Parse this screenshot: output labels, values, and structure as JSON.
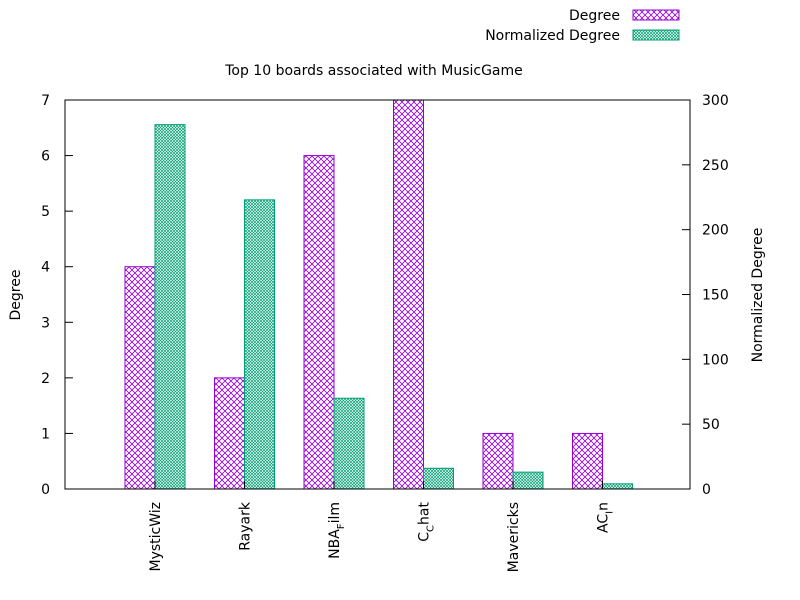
{
  "chart_data": {
    "type": "bar",
    "title": "Top 10 boards associated with MusicGame",
    "categories": [
      "MysticWiz",
      "Rayark",
      "NBA_Film",
      "C_Chat",
      "Mavericks",
      "AC_In"
    ],
    "category_labels": [
      {
        "base": "MysticWiz",
        "sub": "",
        "rest": ""
      },
      {
        "base": "Rayark",
        "sub": "",
        "rest": ""
      },
      {
        "base": "NBA",
        "sub": "F",
        "rest": "ilm"
      },
      {
        "base": "C",
        "sub": "C",
        "rest": "hat"
      },
      {
        "base": "Mavericks",
        "sub": "",
        "rest": ""
      },
      {
        "base": "AC",
        "sub": "I",
        "rest": "n"
      }
    ],
    "series": [
      {
        "name": "Degree",
        "axis": "left",
        "color": "#9400d3",
        "pattern": "crosshatch",
        "values": [
          4,
          2,
          6,
          7,
          1,
          1
        ]
      },
      {
        "name": "Normalized Degree",
        "axis": "right",
        "color": "#009e73",
        "pattern": "dense-crosshatch",
        "values": [
          281,
          223,
          70,
          16,
          13,
          4
        ]
      }
    ],
    "ylabel": "Degree",
    "y2label": "Normalized Degree",
    "ylim": [
      0,
      7
    ],
    "y2lim": [
      0,
      300
    ],
    "yticks": [
      "0",
      "1",
      "2",
      "3",
      "4",
      "5",
      "6",
      "7"
    ],
    "y2ticks": [
      "0",
      "50",
      "100",
      "150",
      "200",
      "250",
      "300"
    ],
    "legend_position": "top-right",
    "grid": false
  }
}
